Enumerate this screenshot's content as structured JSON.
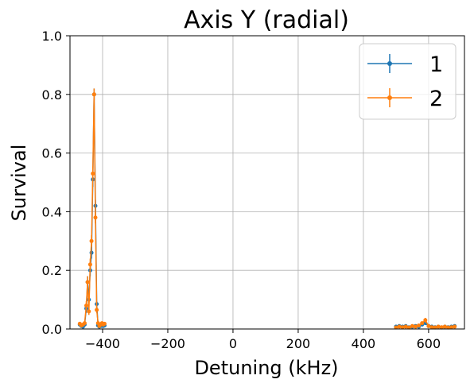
{
  "chart_data": {
    "type": "line",
    "title": "Axis Y (radial)",
    "xlabel": "Detuning (kHz)",
    "ylabel": "Survival",
    "xlim": [
      -500,
      710
    ],
    "ylim": [
      0,
      1.0
    ],
    "xticks": [
      -400,
      -200,
      0,
      200,
      400,
      600
    ],
    "xtick_labels": [
      "−400",
      "−200",
      "0",
      "200",
      "400",
      "600"
    ],
    "yticks": [
      0.0,
      0.2,
      0.4,
      0.6,
      0.8,
      1.0
    ],
    "ytick_labels": [
      "0.0",
      "0.2",
      "0.4",
      "0.6",
      "0.8",
      "1.0"
    ],
    "grid": true,
    "legend_position": "top-right",
    "series": [
      {
        "name": "1",
        "color": "#1f77b4",
        "segments": [
          {
            "x": [
              -470,
              -465,
              -460,
              -455,
              -450,
              -446,
              -442,
              -438,
              -434,
              -430,
              -426,
              -422,
              -418,
              -414,
              -410,
              -406,
              -402,
              -398,
              -394
            ],
            "y": [
              0.015,
              0.01,
              0.008,
              0.015,
              0.07,
              0.16,
              0.1,
              0.2,
              0.26,
              0.51,
              0.8,
              0.42,
              0.085,
              0.012,
              0.008,
              0.01,
              0.015,
              0.01,
              0.012
            ],
            "err": [
              0.005,
              0.005,
              0.005,
              0.006,
              0.015,
              0.02,
              0.015,
              0.02,
              0.02,
              0.025,
              0.02,
              0.02,
              0.01,
              0.005,
              0.005,
              0.005,
              0.005,
              0.005,
              0.005
            ]
          },
          {
            "x": [
              500,
              510,
              520,
              530,
              540,
              550,
              560,
              570,
              580,
              590,
              600,
              610,
              620,
              630,
              640,
              650,
              660,
              670,
              680
            ],
            "y": [
              0.008,
              0.01,
              0.008,
              0.01,
              0.006,
              0.008,
              0.01,
              0.008,
              0.015,
              0.02,
              0.01,
              0.008,
              0.006,
              0.008,
              0.005,
              0.008,
              0.006,
              0.008,
              0.01
            ],
            "err": [
              0.004,
              0.004,
              0.004,
              0.004,
              0.004,
              0.004,
              0.004,
              0.004,
              0.005,
              0.006,
              0.004,
              0.004,
              0.004,
              0.004,
              0.004,
              0.004,
              0.004,
              0.004,
              0.004
            ]
          }
        ]
      },
      {
        "name": "2",
        "color": "#ff7f0e",
        "segments": [
          {
            "x": [
              -470,
              -465,
              -460,
              -455,
              -450,
              -446,
              -442,
              -438,
              -434,
              -430,
              -426,
              -422,
              -418,
              -414,
              -410,
              -406,
              -402,
              -398,
              -394
            ],
            "y": [
              0.018,
              0.012,
              0.015,
              0.02,
              0.08,
              0.16,
              0.06,
              0.22,
              0.3,
              0.53,
              0.8,
              0.38,
              0.065,
              0.02,
              0.01,
              0.015,
              0.02,
              0.015,
              0.018
            ],
            "err": [
              0.005,
              0.005,
              0.005,
              0.006,
              0.015,
              0.02,
              0.012,
              0.02,
              0.02,
              0.025,
              0.02,
              0.02,
              0.01,
              0.005,
              0.005,
              0.005,
              0.005,
              0.005,
              0.005
            ]
          },
          {
            "x": [
              500,
              510,
              520,
              530,
              540,
              550,
              560,
              570,
              580,
              590,
              600,
              610,
              620,
              630,
              640,
              650,
              660,
              670,
              680
            ],
            "y": [
              0.005,
              0.008,
              0.006,
              0.008,
              0.005,
              0.01,
              0.008,
              0.012,
              0.02,
              0.03,
              0.01,
              0.006,
              0.005,
              0.008,
              0.006,
              0.008,
              0.005,
              0.006,
              0.008
            ],
            "err": [
              0.004,
              0.004,
              0.004,
              0.004,
              0.004,
              0.004,
              0.004,
              0.005,
              0.006,
              0.008,
              0.004,
              0.004,
              0.004,
              0.004,
              0.004,
              0.004,
              0.004,
              0.004,
              0.004
            ]
          }
        ]
      }
    ]
  }
}
